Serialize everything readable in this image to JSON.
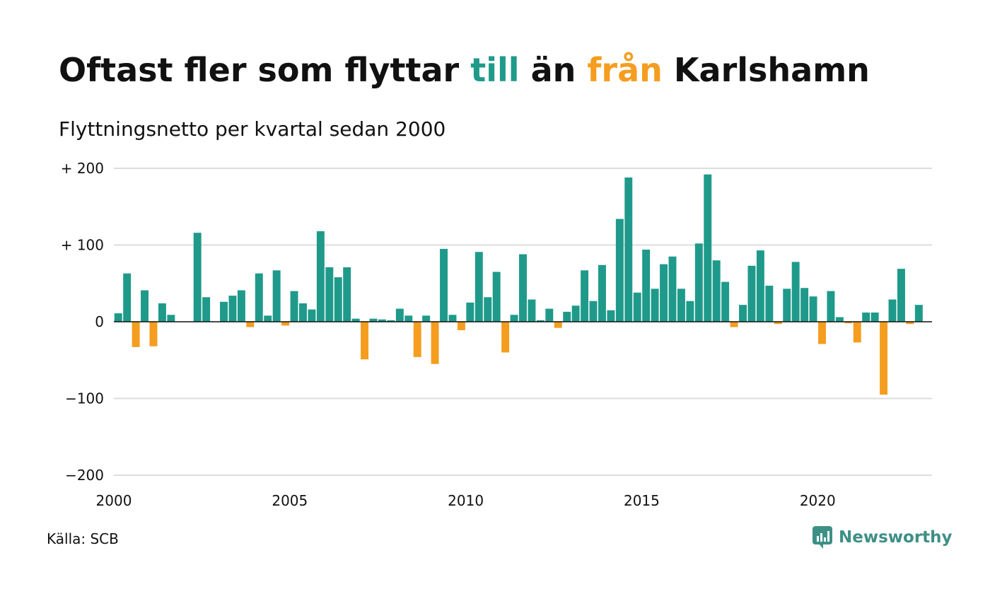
{
  "title": {
    "part1": "Oftast fler som flyttar ",
    "highlight_to": "till",
    "part2": " än ",
    "highlight_from": "från",
    "part3": " Karlshamn"
  },
  "subtitle": "Flyttningsnetto per kvartal sedan 2000",
  "source": "Källa: SCB",
  "brand": "Newsworthy",
  "colors": {
    "positive": "#1f9a8a",
    "negative": "#f59d1f",
    "grid": "#dddddd",
    "brand": "#3e8f86"
  },
  "chart_data": {
    "type": "bar",
    "x_start": 2000,
    "x_step": 0.25,
    "xlim": [
      2000,
      2023.25
    ],
    "ylim": [
      -200,
      200
    ],
    "y_ticks": [
      200,
      100,
      0,
      -100,
      -200
    ],
    "y_tick_labels": [
      "+ 200",
      "+ 100",
      "0",
      "−100",
      "−200"
    ],
    "x_ticks": [
      2000,
      2005,
      2010,
      2015,
      2020
    ],
    "x_tick_labels": [
      "2000",
      "2005",
      "2010",
      "2015",
      "2020"
    ],
    "values": [
      11,
      63,
      -33,
      41,
      -32,
      24,
      9,
      0,
      0,
      116,
      32,
      0,
      26,
      34,
      41,
      -7,
      63,
      8,
      67,
      -5,
      40,
      24,
      16,
      118,
      71,
      58,
      71,
      4,
      -49,
      4,
      3,
      2,
      17,
      8,
      -46,
      8,
      -55,
      95,
      9,
      -11,
      25,
      91,
      32,
      65,
      -40,
      9,
      88,
      29,
      2,
      17,
      -8,
      13,
      21,
      67,
      27,
      74,
      15,
      134,
      188,
      38,
      94,
      43,
      75,
      85,
      43,
      27,
      102,
      192,
      80,
      52,
      -7,
      22,
      73,
      93,
      47,
      -3,
      43,
      78,
      44,
      33,
      -29,
      40,
      6,
      -2,
      -27,
      12,
      12,
      -95,
      29,
      69,
      -3,
      22
    ]
  }
}
